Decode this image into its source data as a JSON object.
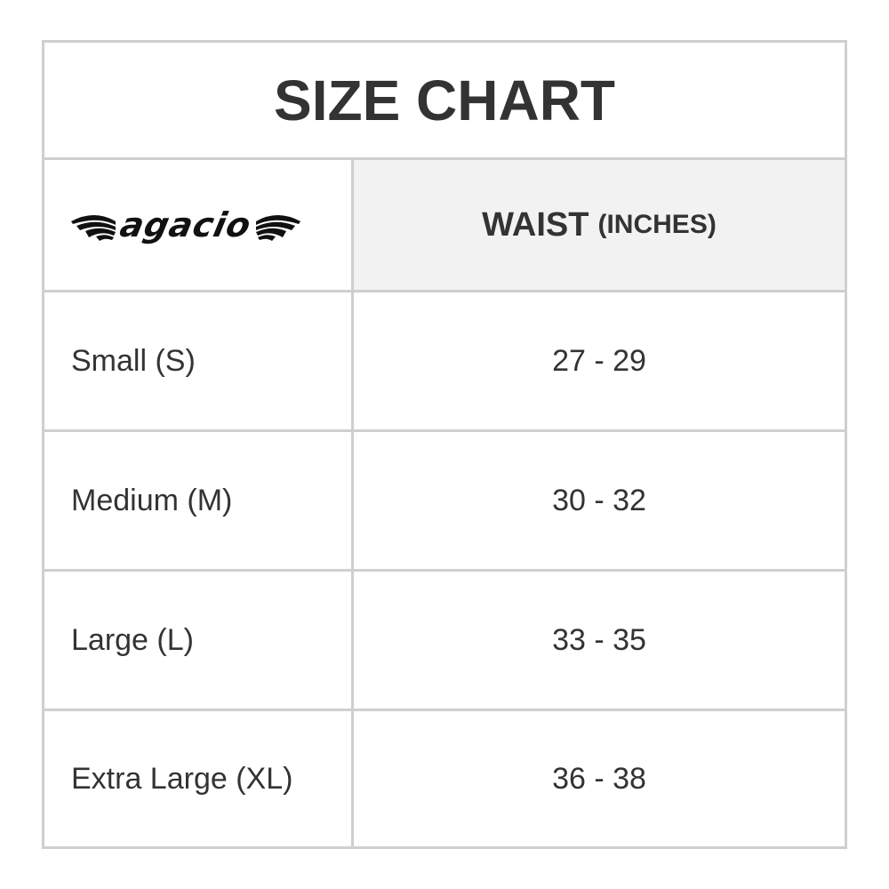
{
  "title": "SIZE CHART",
  "brand": {
    "logo_text": "agacio"
  },
  "header": {
    "col2_main": "WAIST",
    "col2_unit": "(INCHES)"
  },
  "rows": [
    {
      "size": "Small (S)",
      "waist": "27 - 29"
    },
    {
      "size": "Medium (M)",
      "waist": "30 - 32"
    },
    {
      "size": "Large (L)",
      "waist": "33 - 35"
    },
    {
      "size": "Extra Large (XL)",
      "waist": "36 - 38"
    }
  ],
  "colors": {
    "border": "#cfcfcf",
    "header_bg": "#f2f2f2",
    "text": "#333333"
  }
}
